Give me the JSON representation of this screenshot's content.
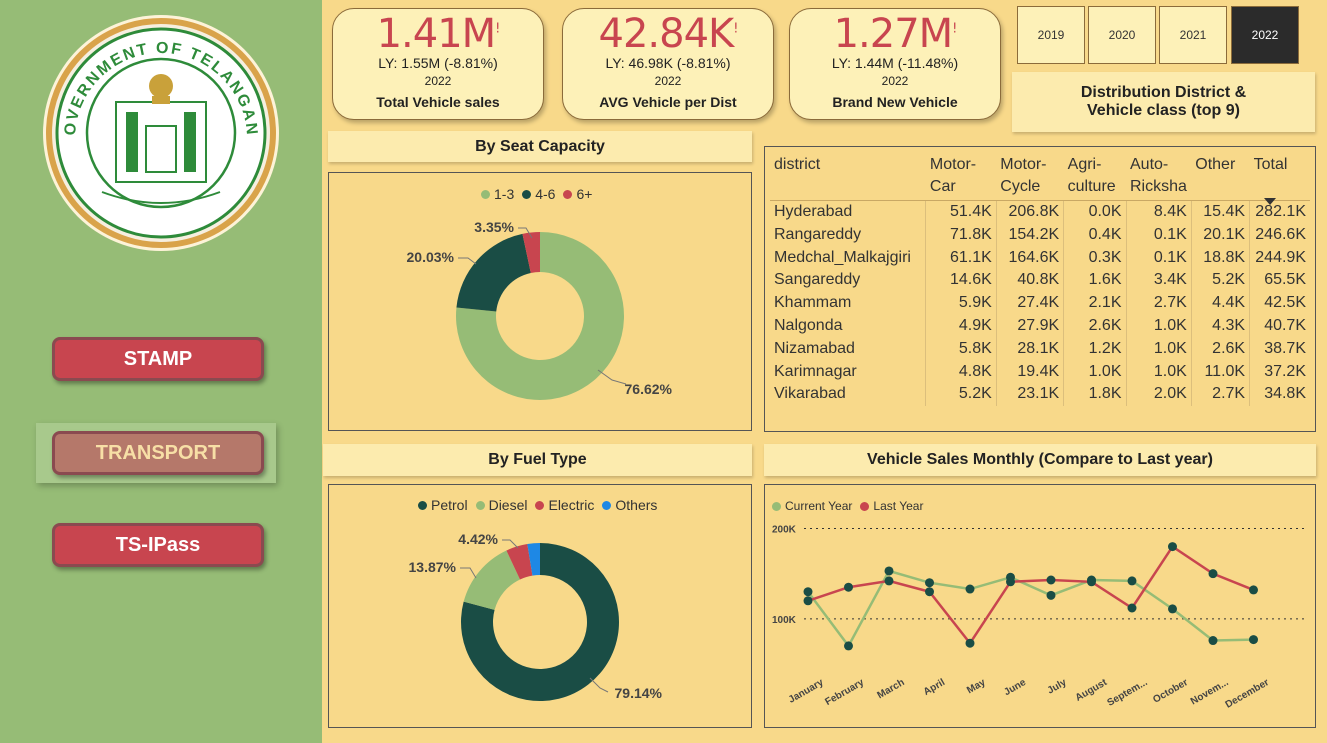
{
  "logo": {
    "seal_text": "GOVERNMENT OF TELANGANA"
  },
  "nav": {
    "stamp": "STAMP",
    "transport": "TRANSPORT",
    "tsipass": "TS-IPass"
  },
  "kpis": [
    {
      "value": "1.41M",
      "mark": "!",
      "ly": "LY: 1.55M (-8.81%)",
      "year": "2022",
      "label": "Total Vehicle sales"
    },
    {
      "value": "42.84K",
      "mark": "!",
      "ly": "LY: 46.98K (-8.81%)",
      "year": "2022",
      "label": "AVG Vehicle per Dist"
    },
    {
      "value": "1.27M",
      "mark": "!",
      "ly": "LY: 1.44M (-11.48%)",
      "year": "2022",
      "label": "Brand New Vehicle"
    }
  ],
  "years": {
    "y2019": "2019",
    "y2020": "2020",
    "y2021": "2021",
    "y2022": "2022",
    "selected": "2022"
  },
  "headers": {
    "seat": "By Seat Capacity",
    "fuel": "By Fuel Type",
    "dist_line1": "Distribution District &",
    "dist_line2": "Vehicle class (top 9)",
    "monthly": "Vehicle Sales Monthly (Compare to Last year)"
  },
  "colors": {
    "green_light": "#96bc76",
    "green_dark": "#1a4d45",
    "red": "#c8454f",
    "blue": "#1e88e5"
  },
  "table": {
    "sort_icon": "sort-desc-icon",
    "columns": [
      "district",
      "Motor-\nCar",
      "Motor-\nCycle",
      "Agri-\nculture",
      "Auto-\nRicksha\n...",
      "Other",
      "Total"
    ],
    "col1": {
      "a": "Motor-",
      "b": "Car"
    },
    "col2": {
      "a": "Motor-",
      "b": "Cycle"
    },
    "col3": {
      "a": "Agri-",
      "b": "culture"
    },
    "col4": {
      "a": "Auto-",
      "b": "Ricksha",
      "c": "..."
    },
    "col0": "district",
    "col5": "Other",
    "col6": "Total",
    "rows": [
      [
        "Hyderabad",
        "51.4K",
        "206.8K",
        "0.0K",
        "8.4K",
        "15.4K",
        "282.1K"
      ],
      [
        "Rangareddy",
        "71.8K",
        "154.2K",
        "0.4K",
        "0.1K",
        "20.1K",
        "246.6K"
      ],
      [
        "Medchal_Malkajgiri",
        "61.1K",
        "164.6K",
        "0.3K",
        "0.1K",
        "18.8K",
        "244.9K"
      ],
      [
        "Sangareddy",
        "14.6K",
        "40.8K",
        "1.6K",
        "3.4K",
        "5.2K",
        "65.5K"
      ],
      [
        "Khammam",
        "5.9K",
        "27.4K",
        "2.1K",
        "2.7K",
        "4.4K",
        "42.5K"
      ],
      [
        "Nalgonda",
        "4.9K",
        "27.9K",
        "2.6K",
        "1.0K",
        "4.3K",
        "40.7K"
      ],
      [
        "Nizamabad",
        "5.8K",
        "28.1K",
        "1.2K",
        "1.0K",
        "2.6K",
        "38.7K"
      ],
      [
        "Karimnagar",
        "4.8K",
        "19.4K",
        "1.0K",
        "1.0K",
        "11.0K",
        "37.2K"
      ],
      [
        "Vikarabad",
        "5.2K",
        "23.1K",
        "1.8K",
        "2.0K",
        "2.7K",
        "34.8K"
      ]
    ]
  },
  "chart_data": [
    {
      "type": "pie",
      "title": "By Seat Capacity",
      "categories": [
        "1-3",
        "4-6",
        "6+"
      ],
      "values": [
        76.62,
        20.03,
        3.35
      ],
      "labels": [
        "76.62%",
        "20.03%",
        "3.35%"
      ],
      "colors": [
        "#96bc76",
        "#1a4d45",
        "#c8454f"
      ],
      "legend": "top"
    },
    {
      "type": "pie",
      "title": "By Fuel Type",
      "categories": [
        "Petrol",
        "Diesel",
        "Electric",
        "Others"
      ],
      "values": [
        79.14,
        13.87,
        4.42,
        2.57
      ],
      "labels": [
        "79.14%",
        "13.87%",
        "4.42%"
      ],
      "colors": [
        "#1a4d45",
        "#96bc76",
        "#c8454f",
        "#1e88e5"
      ],
      "legend": "top"
    },
    {
      "type": "line",
      "title": "Vehicle Sales Monthly (Compare to Last year)",
      "categories": [
        "January",
        "February",
        "March",
        "April",
        "May",
        "June",
        "July",
        "August",
        "Septem...",
        "October",
        "Novem...",
        "December"
      ],
      "series": [
        {
          "name": "Current Year",
          "color": "#96bc76",
          "values": [
            130,
            70,
            153,
            140,
            133,
            146,
            126,
            143,
            142,
            111,
            76,
            77
          ]
        },
        {
          "name": "Last Year",
          "color": "#c8454f",
          "values": [
            120,
            135,
            142,
            130,
            73,
            141,
            143,
            141,
            112,
            180,
            150,
            132
          ]
        }
      ],
      "yticks": [
        "200K",
        "100K"
      ],
      "ylim": [
        50,
        205
      ],
      "legend": "top-left"
    }
  ]
}
